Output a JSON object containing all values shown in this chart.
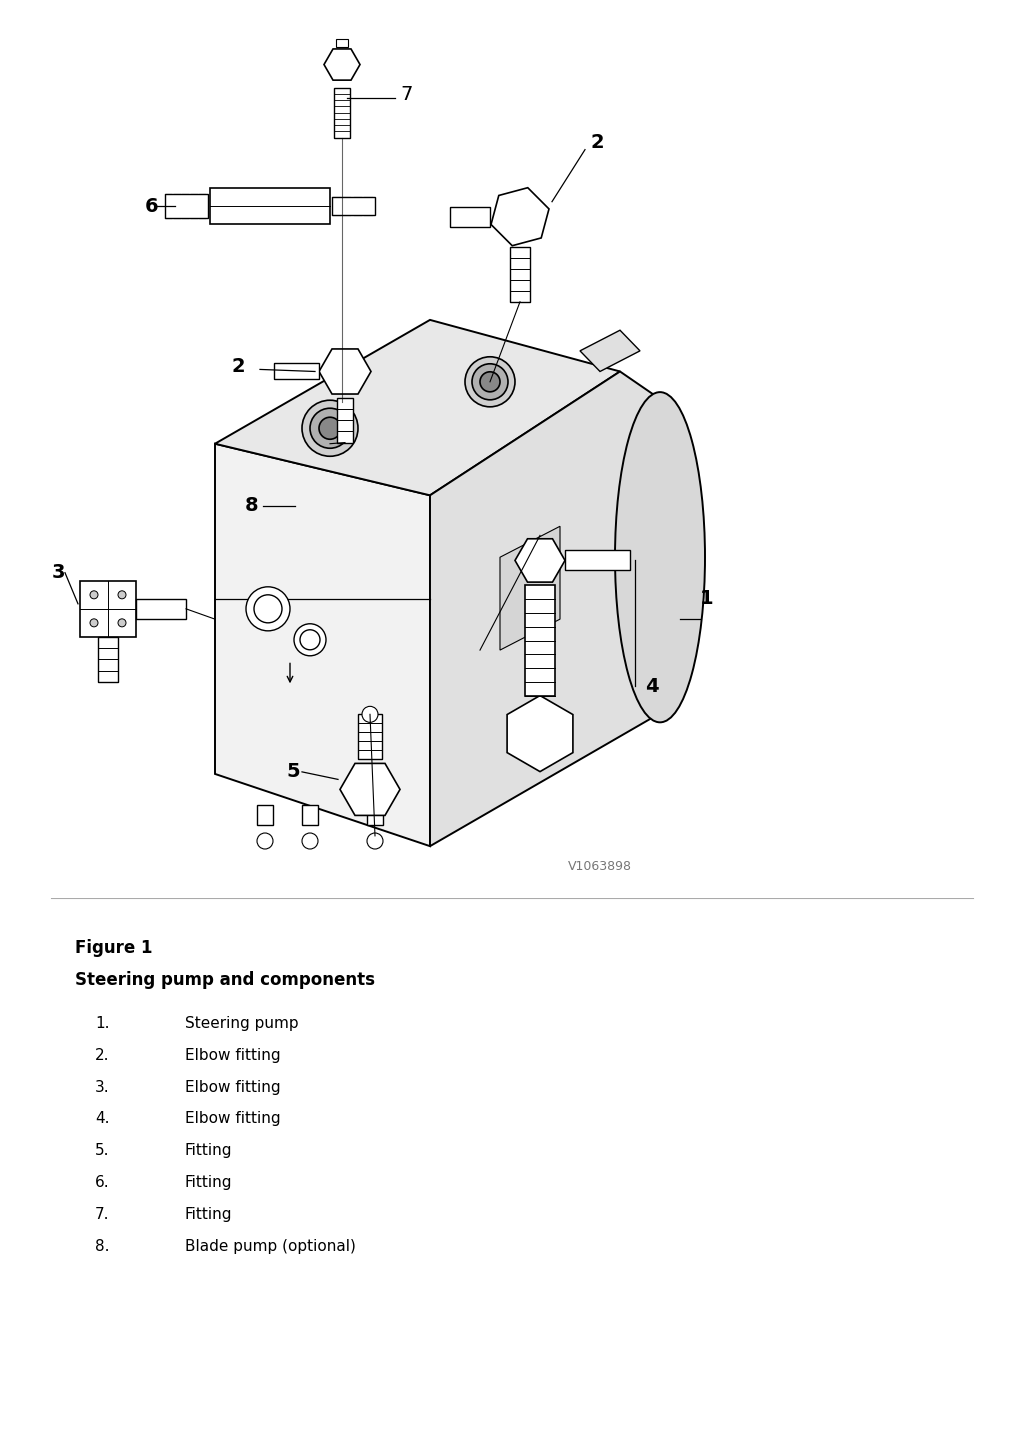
{
  "title": "Figure 1",
  "subtitle": "Steering pump and components",
  "items": [
    {
      "num": "1.",
      "text": "Steering pump"
    },
    {
      "num": "2.",
      "text": "Elbow fitting"
    },
    {
      "num": "3.",
      "text": "Elbow fitting"
    },
    {
      "num": "4.",
      "text": "Elbow fitting"
    },
    {
      "num": "5.",
      "text": "Fitting"
    },
    {
      "num": "6.",
      "text": "Fitting"
    },
    {
      "num": "7.",
      "text": "Fitting"
    },
    {
      "num": "8.",
      "text": "Blade pump (optional)"
    }
  ],
  "watermark": "V1063898",
  "bg_color": "#ffffff",
  "text_color": "#000000",
  "line_color": "#000000",
  "fig_width": 10.24,
  "fig_height": 14.48,
  "dpi": 100
}
